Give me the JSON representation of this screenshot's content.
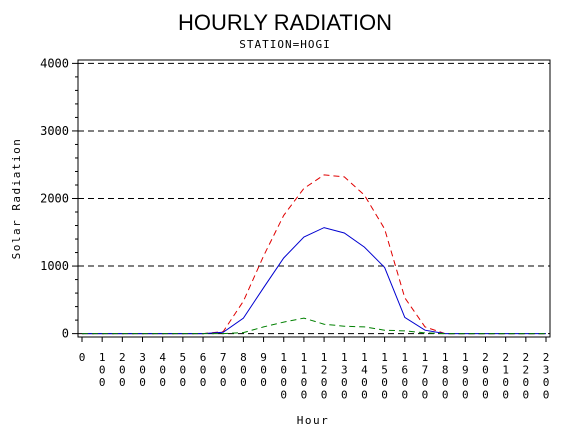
{
  "chart_data": {
    "type": "line",
    "title": "HOURLY RADIATION",
    "subtitle": "STATION=HOGI",
    "xlabel": "Hour",
    "ylabel": "Solar Radiation",
    "x": [
      0,
      100,
      200,
      300,
      400,
      500,
      600,
      700,
      800,
      900,
      1000,
      1100,
      1200,
      1300,
      1400,
      1500,
      1600,
      1700,
      1800,
      1900,
      2000,
      2100,
      2200,
      2300
    ],
    "x_tick_labels": [
      "0",
      "100",
      "200",
      "300",
      "400",
      "500",
      "600",
      "700",
      "800",
      "900",
      "1000",
      "1100",
      "1200",
      "1300",
      "1400",
      "1500",
      "1600",
      "1700",
      "1800",
      "1900",
      "2000",
      "2100",
      "2200",
      "2300"
    ],
    "ylim": [
      -50,
      4050
    ],
    "y_ticks": [
      0,
      1000,
      2000,
      3000,
      4000
    ],
    "grid": "horizontal dashed at major ticks",
    "series": [
      {
        "color": "#e00000",
        "dash": "dashed",
        "values": [
          0,
          0,
          0,
          0,
          0,
          0,
          0,
          30,
          480,
          1150,
          1750,
          2150,
          2350,
          2320,
          2050,
          1550,
          530,
          100,
          0,
          0,
          0,
          0,
          0,
          0
        ]
      },
      {
        "color": "#0000d0",
        "dash": "solid",
        "values": [
          0,
          0,
          0,
          0,
          0,
          0,
          0,
          20,
          230,
          680,
          1120,
          1430,
          1570,
          1490,
          1280,
          980,
          240,
          50,
          0,
          0,
          0,
          0,
          0,
          0
        ]
      },
      {
        "color": "#008000",
        "dash": "dashed",
        "values": [
          0,
          0,
          0,
          0,
          0,
          0,
          0,
          0,
          15,
          100,
          170,
          230,
          140,
          110,
          100,
          50,
          40,
          10,
          0,
          0,
          0,
          0,
          0,
          0
        ]
      }
    ]
  }
}
